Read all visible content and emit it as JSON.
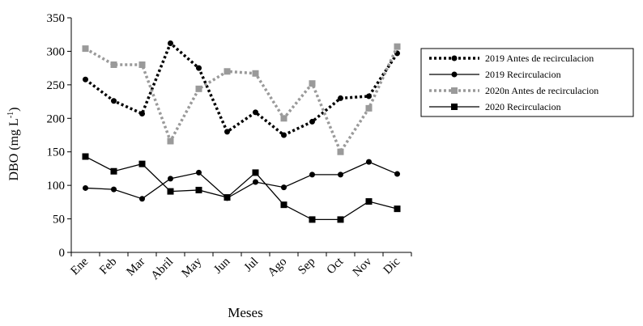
{
  "chart_data": {
    "type": "line",
    "title": "",
    "xlabel": "Meses",
    "ylabel": "DBO (mg L",
    "ylabel_sup": "-1",
    "ylabel_end": ")",
    "categories": [
      "Ene",
      "Feb",
      "Mar",
      "Abril",
      "May",
      "Jun",
      "Jul",
      "Ago",
      "Sep",
      "Oct",
      "Nov",
      "Dic"
    ],
    "ylim": [
      0,
      350
    ],
    "yticks": [
      0,
      50,
      100,
      150,
      200,
      250,
      300,
      350
    ],
    "grid": false,
    "legend_position": "right",
    "series": [
      {
        "name": "2019 Antes de recirculacion",
        "values": [
          258,
          226,
          207,
          312,
          275,
          180,
          209,
          175,
          195,
          230,
          233,
          297
        ],
        "color": "#000000",
        "line": "dotted",
        "marker": "circle"
      },
      {
        "name": "2019 Recirculacion",
        "values": [
          96,
          94,
          80,
          110,
          119,
          81,
          105,
          97,
          116,
          116,
          135,
          117
        ],
        "color": "#000000",
        "line": "solid",
        "marker": "circle"
      },
      {
        "name": "2020n Antes de recirculacion",
        "values": [
          304,
          280,
          280,
          166,
          244,
          270,
          267,
          200,
          252,
          150,
          215,
          307
        ],
        "color": "#9a9a9a",
        "line": "dotted",
        "marker": "square"
      },
      {
        "name": "2020 Recirculacion",
        "values": [
          143,
          121,
          132,
          91,
          93,
          82,
          119,
          71,
          49,
          49,
          76,
          65
        ],
        "color": "#000000",
        "line": "solid",
        "marker": "square"
      }
    ]
  }
}
